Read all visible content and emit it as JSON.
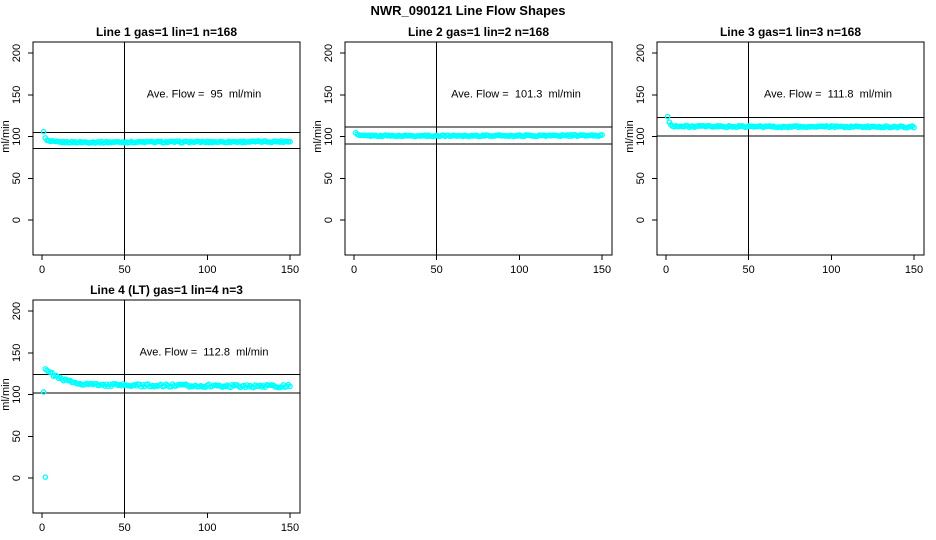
{
  "title": "NWR_090121  Line Flow Shapes",
  "colors": {
    "points": "#00FFFF",
    "axis": "#000000",
    "background": "#FFFFFF"
  },
  "axes": {
    "ylabel": "ml/min",
    "x_ticks": [
      0,
      50,
      100,
      150
    ],
    "y_ticks": [
      0,
      50,
      100,
      150,
      200
    ],
    "vline_x": 50,
    "x_range_drawn": [
      1,
      150
    ],
    "grid": "off",
    "legend": "none"
  },
  "layout_hints": {
    "annotation_at": [
      98,
      147
    ],
    "grid_rows": 2,
    "grid_cols": 3
  },
  "chart_data": [
    {
      "type": "scatter",
      "title": "Line 1 gas=1 lin=1 n=168",
      "annotation": "Ave. Flow =  95  ml/min",
      "ave_flow_ml_min": 95,
      "ref_lines": [
        104.5,
        85.5
      ],
      "grid": {
        "row": 0,
        "col": 0
      },
      "points_profile": [
        [
          1,
          106
        ],
        [
          2,
          98
        ],
        [
          3,
          95.5
        ],
        [
          5,
          94
        ],
        [
          10,
          93.3
        ],
        [
          30,
          93.2
        ],
        [
          60,
          93.4
        ],
        [
          100,
          93.5
        ],
        [
          150,
          94
        ]
      ],
      "outlier_points": [],
      "noise_amplitude": 0.9,
      "seed": 1
    },
    {
      "type": "scatter",
      "title": "Line 2 gas=1 lin=2 n=168",
      "annotation": "Ave. Flow =  101.3  ml/min",
      "ave_flow_ml_min": 101.3,
      "ref_lines": [
        111.4,
        91.2
      ],
      "grid": {
        "row": 0,
        "col": 1
      },
      "points_profile": [
        [
          1,
          104.5
        ],
        [
          2,
          102.5
        ],
        [
          3,
          101.5
        ],
        [
          5,
          101
        ],
        [
          30,
          100.8
        ],
        [
          80,
          101
        ],
        [
          150,
          101.2
        ]
      ],
      "outlier_points": [],
      "noise_amplitude": 0.8,
      "seed": 2
    },
    {
      "type": "scatter",
      "title": "Line 3 gas=1 lin=3 n=168",
      "annotation": "Ave. Flow =  111.8  ml/min",
      "ave_flow_ml_min": 111.8,
      "ref_lines": [
        123,
        100.6
      ],
      "grid": {
        "row": 0,
        "col": 2
      },
      "points_profile": [
        [
          1,
          124
        ],
        [
          2,
          117
        ],
        [
          3,
          114
        ],
        [
          5,
          112.5
        ],
        [
          10,
          112
        ],
        [
          60,
          111.8
        ],
        [
          150,
          111.5
        ]
      ],
      "outlier_points": [],
      "noise_amplitude": 1.0,
      "seed": 3
    },
    {
      "type": "scatter",
      "title": "Line 4 (LT) gas=1 lin=4 n=3",
      "annotation": "Ave. Flow =  112.8  ml/min",
      "ave_flow_ml_min": 112.8,
      "ref_lines": [
        124.1,
        101.5
      ],
      "grid": {
        "row": 1,
        "col": 0
      },
      "points_profile": [
        [
          2,
          131
        ],
        [
          3,
          129
        ],
        [
          5,
          126
        ],
        [
          8,
          122
        ],
        [
          12,
          118
        ],
        [
          18,
          115
        ],
        [
          25,
          113
        ],
        [
          35,
          111.5
        ],
        [
          50,
          111
        ],
        [
          75,
          110.7
        ],
        [
          100,
          110.5
        ],
        [
          125,
          110
        ],
        [
          150,
          110
        ]
      ],
      "outlier_points": [
        [
          1,
          103
        ],
        [
          2,
          1
        ]
      ],
      "noise_amplitude": 1.7,
      "seed": 4
    }
  ]
}
